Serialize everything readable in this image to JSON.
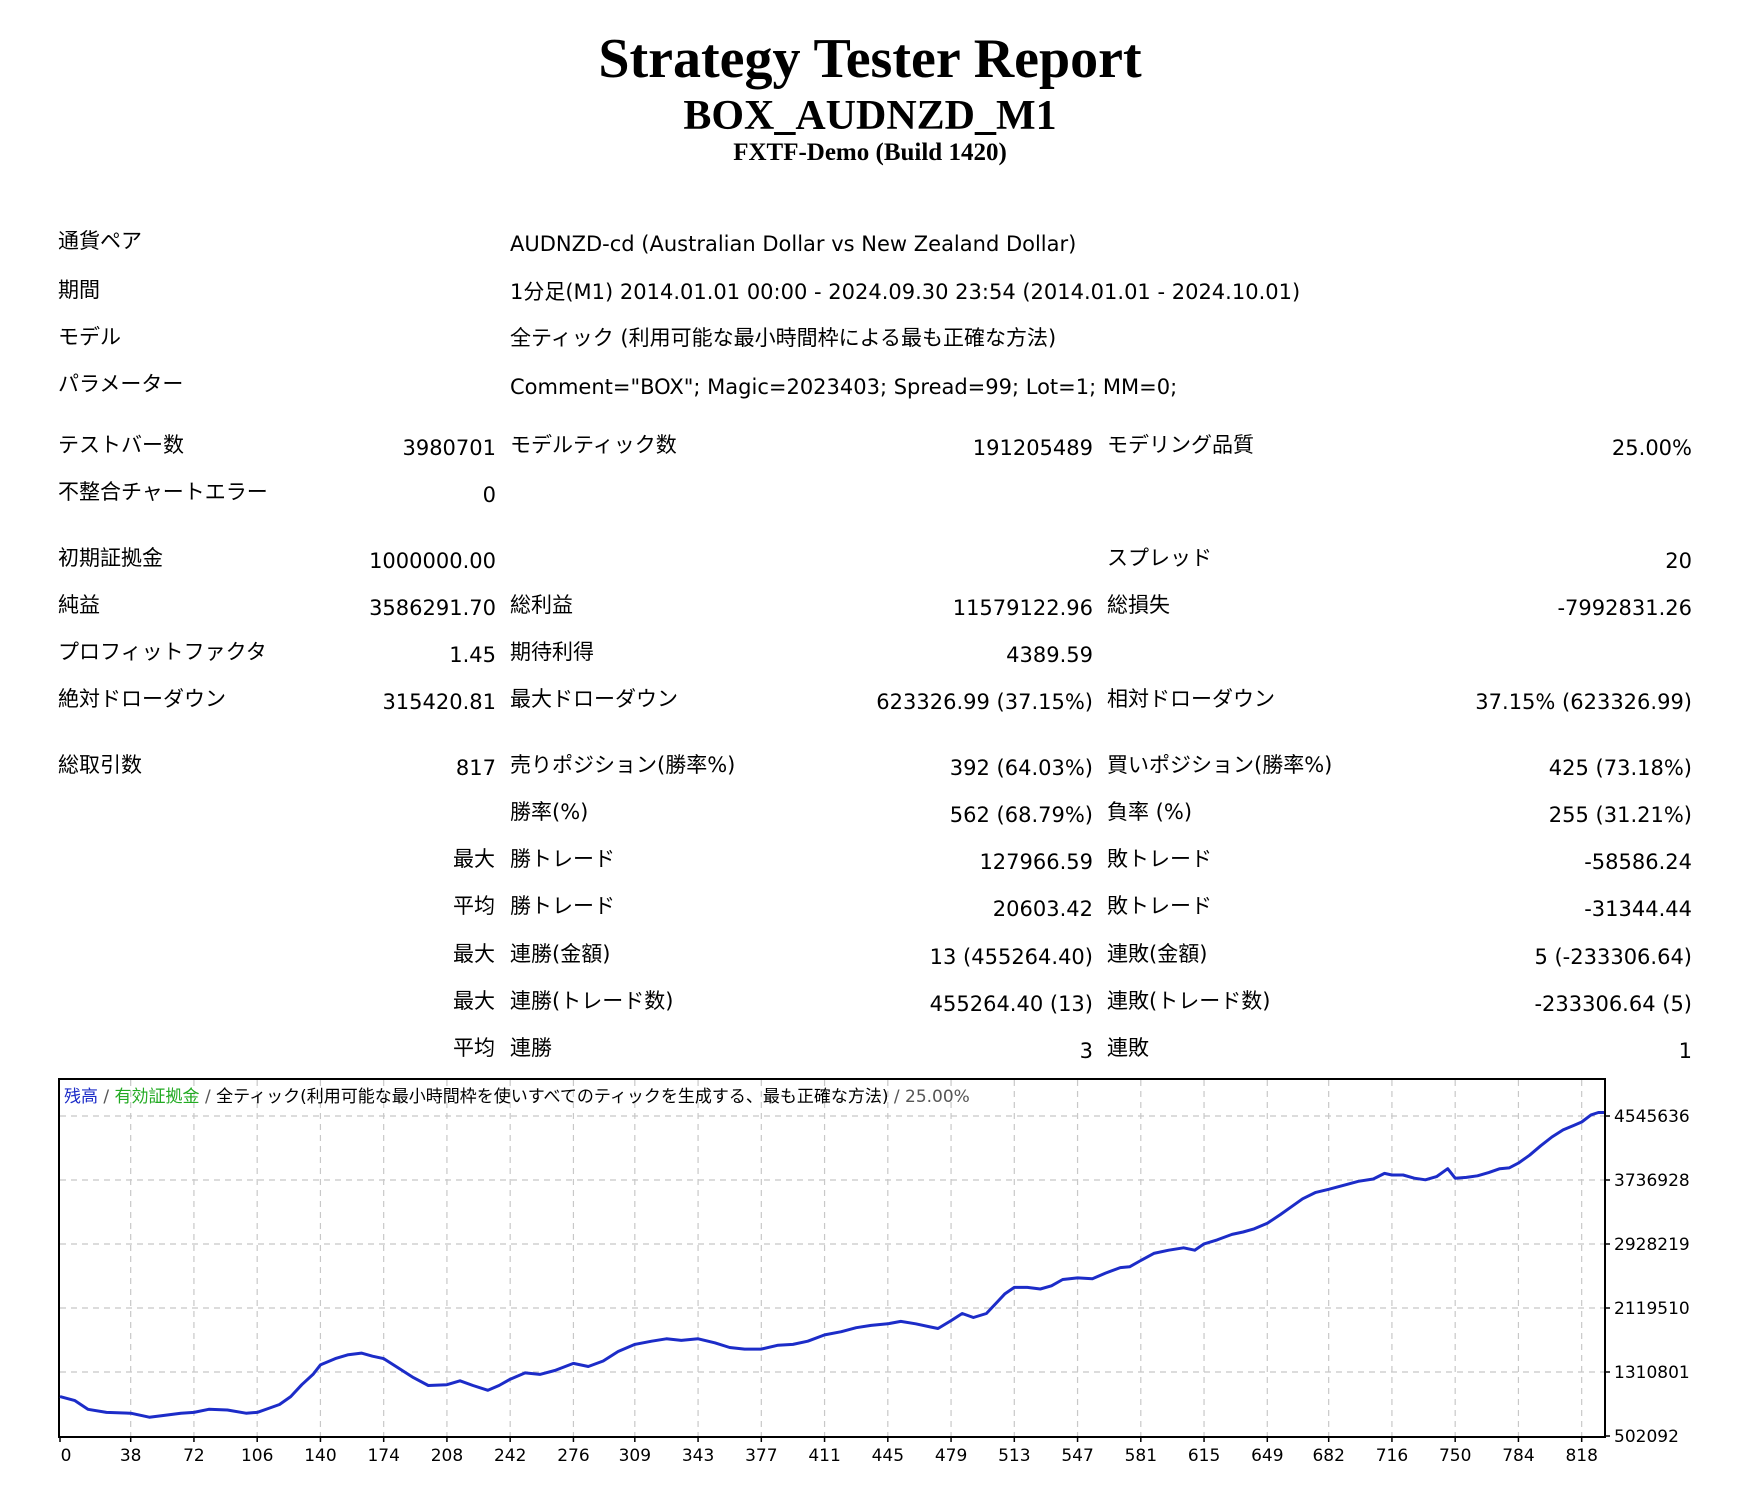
{
  "header": {
    "title": "Strategy Tester Report",
    "expert": "BOX_AUDNZD_M1",
    "server": "FXTF-Demo (Build 1420)"
  },
  "info": {
    "symbol_label": "通貨ペア",
    "symbol_value": "AUDNZD-cd (Australian Dollar vs New Zealand Dollar)",
    "period_label": "期間",
    "period_value": "1分足(M1) 2014.01.01 00:00 - 2024.09.30 23:54 (2014.01.01 - 2024.10.01)",
    "model_label": "モデル",
    "model_value": "全ティック (利用可能な最小時間枠による最も正確な方法)",
    "params_label": "パラメーター",
    "params_value": "Comment=\"BOX\"; Magic=2023403; Spread=99; Lot=1; MM=0;"
  },
  "stats": {
    "bars_label": "テストバー数",
    "bars_value": "3980701",
    "ticks_label": "モデルティック数",
    "ticks_value": "191205489",
    "quality_label": "モデリング品質",
    "quality_value": "25.00%",
    "mismatch_label": "不整合チャートエラー",
    "mismatch_value": "0",
    "deposit_label": "初期証拠金",
    "deposit_value": "1000000.00",
    "spread_label": "スプレッド",
    "spread_value": "20",
    "net_label": "純益",
    "net_value": "3586291.70",
    "gross_profit_label": "総利益",
    "gross_profit_value": "11579122.96",
    "gross_loss_label": "総損失",
    "gross_loss_value": "-7992831.26",
    "pf_label": "プロフィットファクタ",
    "pf_value": "1.45",
    "expected_label": "期待利得",
    "expected_value": "4389.59",
    "abs_dd_label": "絶対ドローダウン",
    "abs_dd_value": "315420.81",
    "max_dd_label": "最大ドローダウン",
    "max_dd_value": "623326.99 (37.15%)",
    "rel_dd_label": "相対ドローダウン",
    "rel_dd_value": "37.15% (623326.99)",
    "trades_label": "総取引数",
    "trades_value": "817",
    "short_label": "売りポジション(勝率%)",
    "short_value": "392 (64.03%)",
    "long_label": "買いポジション(勝率%)",
    "long_value": "425 (73.18%)",
    "win_label": "勝率(%)",
    "win_value": "562 (68.79%)",
    "loss_label": "負率 (%)",
    "loss_value": "255 (31.21%)",
    "max_label": "最大",
    "avg_label": "平均",
    "win_trade_label": "勝トレード",
    "loss_trade_label": "敗トレード",
    "largest_win_value": "127966.59",
    "largest_loss_value": "-58586.24",
    "avg_win_value": "20603.42",
    "avg_loss_value": "-31344.44",
    "cons_win_money_label": "連勝(金額)",
    "cons_win_money_value": "13 (455264.40)",
    "cons_loss_money_label": "連敗(金額)",
    "cons_loss_money_value": "5 (-233306.64)",
    "cons_win_count_label": "連勝(トレード数)",
    "cons_win_count_value": "455264.40 (13)",
    "cons_loss_count_label": "連敗(トレード数)",
    "cons_loss_count_value": "-233306.64 (5)",
    "cons_win_label": "連勝",
    "avg_cons_win_value": "3",
    "cons_loss_label": "連敗",
    "avg_cons_loss_value": "1"
  },
  "chart_legend": {
    "balance": "残高",
    "sep": " / ",
    "equity": "有効証拠金",
    "model": "全ティック(利用可能な最小時間枠を使いすべてのティックを生成する、最も正確な方法)",
    "quality": "25.00%"
  },
  "chart_data": {
    "type": "line",
    "xlabel": "",
    "ylabel": "",
    "x_ticks": [
      0,
      38,
      72,
      106,
      140,
      174,
      208,
      242,
      276,
      309,
      343,
      377,
      411,
      445,
      479,
      513,
      547,
      581,
      615,
      649,
      682,
      716,
      750,
      784,
      818
    ],
    "y_ticks": [
      502092,
      1310801,
      2119510,
      2928219,
      3736928,
      4545636
    ],
    "xlim": [
      0,
      830
    ],
    "ylim": [
      502092,
      4545636
    ],
    "grid": true,
    "line_color": "#1c2cc8",
    "series": [
      {
        "points": [
          [
            0,
            1000000
          ],
          [
            8,
            950000
          ],
          [
            15,
            840000
          ],
          [
            25,
            800000
          ],
          [
            38,
            790000
          ],
          [
            48,
            740000
          ],
          [
            55,
            760000
          ],
          [
            65,
            790000
          ],
          [
            72,
            800000
          ],
          [
            80,
            840000
          ],
          [
            90,
            830000
          ],
          [
            100,
            790000
          ],
          [
            106,
            800000
          ],
          [
            112,
            850000
          ],
          [
            118,
            900000
          ],
          [
            124,
            1000000
          ],
          [
            130,
            1150000
          ],
          [
            136,
            1280000
          ],
          [
            140,
            1400000
          ],
          [
            148,
            1480000
          ],
          [
            155,
            1530000
          ],
          [
            162,
            1550000
          ],
          [
            168,
            1510000
          ],
          [
            174,
            1480000
          ],
          [
            182,
            1360000
          ],
          [
            190,
            1240000
          ],
          [
            198,
            1140000
          ],
          [
            208,
            1150000
          ],
          [
            215,
            1200000
          ],
          [
            222,
            1140000
          ],
          [
            230,
            1080000
          ],
          [
            236,
            1140000
          ],
          [
            242,
            1220000
          ],
          [
            250,
            1300000
          ],
          [
            258,
            1280000
          ],
          [
            266,
            1330000
          ],
          [
            276,
            1420000
          ],
          [
            284,
            1380000
          ],
          [
            292,
            1450000
          ],
          [
            300,
            1570000
          ],
          [
            309,
            1660000
          ],
          [
            318,
            1700000
          ],
          [
            326,
            1730000
          ],
          [
            334,
            1710000
          ],
          [
            343,
            1730000
          ],
          [
            352,
            1680000
          ],
          [
            360,
            1620000
          ],
          [
            368,
            1600000
          ],
          [
            377,
            1600000
          ],
          [
            386,
            1650000
          ],
          [
            394,
            1660000
          ],
          [
            402,
            1700000
          ],
          [
            411,
            1780000
          ],
          [
            420,
            1820000
          ],
          [
            428,
            1870000
          ],
          [
            436,
            1900000
          ],
          [
            445,
            1920000
          ],
          [
            452,
            1950000
          ],
          [
            460,
            1920000
          ],
          [
            468,
            1880000
          ],
          [
            472,
            1860000
          ],
          [
            479,
            1960000
          ],
          [
            485,
            2050000
          ],
          [
            491,
            2000000
          ],
          [
            498,
            2050000
          ],
          [
            504,
            2200000
          ],
          [
            508,
            2300000
          ],
          [
            513,
            2380000
          ],
          [
            520,
            2380000
          ],
          [
            527,
            2360000
          ],
          [
            533,
            2400000
          ],
          [
            539,
            2480000
          ],
          [
            547,
            2500000
          ],
          [
            555,
            2490000
          ],
          [
            562,
            2560000
          ],
          [
            570,
            2630000
          ],
          [
            575,
            2640000
          ],
          [
            581,
            2720000
          ],
          [
            588,
            2810000
          ],
          [
            596,
            2850000
          ],
          [
            604,
            2880000
          ],
          [
            610,
            2850000
          ],
          [
            615,
            2930000
          ],
          [
            622,
            2980000
          ],
          [
            630,
            3050000
          ],
          [
            636,
            3080000
          ],
          [
            642,
            3120000
          ],
          [
            649,
            3190000
          ],
          [
            656,
            3300000
          ],
          [
            662,
            3400000
          ],
          [
            668,
            3500000
          ],
          [
            675,
            3580000
          ],
          [
            682,
            3620000
          ],
          [
            690,
            3670000
          ],
          [
            698,
            3720000
          ],
          [
            706,
            3750000
          ],
          [
            712,
            3820000
          ],
          [
            716,
            3800000
          ],
          [
            722,
            3800000
          ],
          [
            728,
            3760000
          ],
          [
            734,
            3740000
          ],
          [
            740,
            3780000
          ],
          [
            746,
            3880000
          ],
          [
            750,
            3760000
          ],
          [
            756,
            3770000
          ],
          [
            762,
            3790000
          ],
          [
            768,
            3830000
          ],
          [
            774,
            3880000
          ],
          [
            779,
            3890000
          ],
          [
            784,
            3950000
          ],
          [
            790,
            4050000
          ],
          [
            796,
            4170000
          ],
          [
            802,
            4280000
          ],
          [
            808,
            4370000
          ],
          [
            814,
            4430000
          ],
          [
            818,
            4470000
          ],
          [
            823,
            4560000
          ],
          [
            827,
            4590000
          ],
          [
            830,
            4590000
          ]
        ]
      }
    ]
  }
}
